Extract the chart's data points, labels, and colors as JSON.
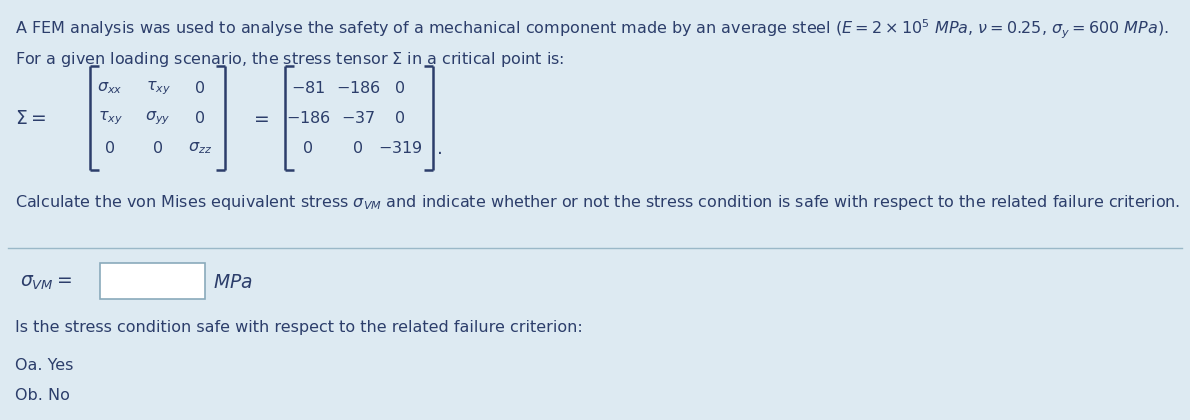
{
  "bg_color": "#ddeaf2",
  "text_color": "#2c3e6b",
  "line1": "A FEM analysis was used to analyse the safety of a mechanical component made by an average steel ($E = 2 \\times 10^5$ $MPa$, $\\nu = 0.25$, $\\sigma_y = 600$ $MPa$).",
  "line2": "For a given loading scenario, the stress tensor $\\Sigma$ in a critical point is:",
  "line_calc": "Calculate the von Mises equivalent stress $\\sigma_{VM}$ and indicate whether or not the stress condition is safe with respect to the related failure criterion.",
  "question_label": "Is the stress condition safe with respect to the related failure criterion:",
  "option_a": "Oa. Yes",
  "option_b": "Ob. No",
  "matrix_sym_rows": [
    [
      "$\\sigma_{xx}$",
      "$\\tau_{xy}$",
      "$0$"
    ],
    [
      "$\\tau_{xy}$",
      "$\\sigma_{yy}$",
      "$0$"
    ],
    [
      "$0$",
      "$0$",
      "$\\sigma_{zz}$"
    ]
  ],
  "matrix_num_rows": [
    [
      "$-81$",
      "$-186$",
      "$0$"
    ],
    [
      "$-186$",
      "$-37$",
      "$0$"
    ],
    [
      "$0$",
      "$0$",
      "$-319$"
    ]
  ],
  "divider_color": "#9ab8c8",
  "box_color": "#ffffff",
  "box_border_color": "#8aaabb",
  "font_size": 11.5,
  "matrix_font_size": 11.5,
  "bracket_color": "#2c3e6b"
}
